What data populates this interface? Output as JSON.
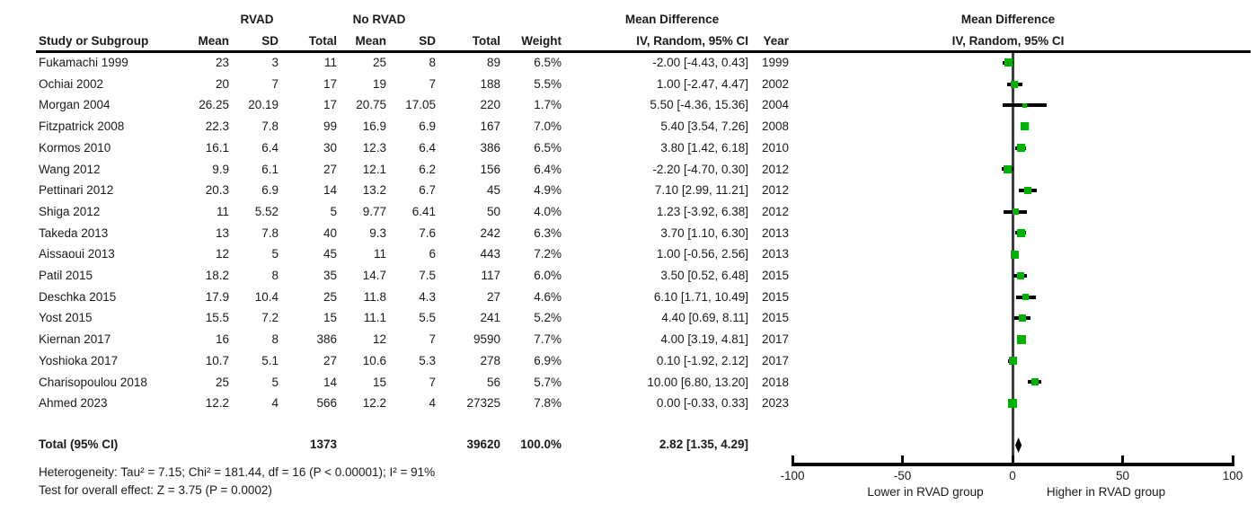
{
  "chart_data": {
    "type": "forest",
    "group1_label": "RVAD",
    "group2_label": "No RVAD",
    "effect_title": "Mean Difference",
    "effect_subtitle": "IV, Random, 95% CI",
    "plot_title": "Mean Difference",
    "plot_subtitle": "IV, Random, 95% CI",
    "columns": [
      "Study or Subgroup",
      "Mean",
      "SD",
      "Total",
      "Mean",
      "SD",
      "Total",
      "Weight",
      "IV, Random, 95% CI",
      "Year"
    ],
    "studies": [
      {
        "study": "Fukamachi 1999",
        "rvad_mean": "23",
        "rvad_sd": "3",
        "rvad_total": "11",
        "no_rvad_mean": "25",
        "no_rvad_sd": "8",
        "no_rvad_total": "89",
        "weight": "6.5%",
        "ci_label": "-2.00 [-4.43, 0.43]",
        "year": "1999",
        "md": -2.0,
        "ci_low": -4.43,
        "ci_high": 0.43,
        "weight_pct": 6.5
      },
      {
        "study": "Ochiai 2002",
        "rvad_mean": "20",
        "rvad_sd": "7",
        "rvad_total": "17",
        "no_rvad_mean": "19",
        "no_rvad_sd": "7",
        "no_rvad_total": "188",
        "weight": "5.5%",
        "ci_label": "1.00 [-2.47, 4.47]",
        "year": "2002",
        "md": 1.0,
        "ci_low": -2.47,
        "ci_high": 4.47,
        "weight_pct": 5.5
      },
      {
        "study": "Morgan 2004",
        "rvad_mean": "26.25",
        "rvad_sd": "20.19",
        "rvad_total": "17",
        "no_rvad_mean": "20.75",
        "no_rvad_sd": "17.05",
        "no_rvad_total": "220",
        "weight": "1.7%",
        "ci_label": "5.50 [-4.36, 15.36]",
        "year": "2004",
        "md": 5.5,
        "ci_low": -4.36,
        "ci_high": 15.36,
        "weight_pct": 1.7
      },
      {
        "study": "Fitzpatrick 2008",
        "rvad_mean": "22.3",
        "rvad_sd": "7.8",
        "rvad_total": "99",
        "no_rvad_mean": "16.9",
        "no_rvad_sd": "6.9",
        "no_rvad_total": "167",
        "weight": "7.0%",
        "ci_label": "5.40 [3.54, 7.26]",
        "year": "2008",
        "md": 5.4,
        "ci_low": 3.54,
        "ci_high": 7.26,
        "weight_pct": 7.0
      },
      {
        "study": "Kormos 2010",
        "rvad_mean": "16.1",
        "rvad_sd": "6.4",
        "rvad_total": "30",
        "no_rvad_mean": "12.3",
        "no_rvad_sd": "6.4",
        "no_rvad_total": "386",
        "weight": "6.5%",
        "ci_label": "3.80 [1.42, 6.18]",
        "year": "2010",
        "md": 3.8,
        "ci_low": 1.42,
        "ci_high": 6.18,
        "weight_pct": 6.5
      },
      {
        "study": "Wang 2012",
        "rvad_mean": "9.9",
        "rvad_sd": "6.1",
        "rvad_total": "27",
        "no_rvad_mean": "12.1",
        "no_rvad_sd": "6.2",
        "no_rvad_total": "156",
        "weight": "6.4%",
        "ci_label": "-2.20 [-4.70, 0.30]",
        "year": "2012",
        "md": -2.2,
        "ci_low": -4.7,
        "ci_high": 0.3,
        "weight_pct": 6.4
      },
      {
        "study": "Pettinari 2012",
        "rvad_mean": "20.3",
        "rvad_sd": "6.9",
        "rvad_total": "14",
        "no_rvad_mean": "13.2",
        "no_rvad_sd": "6.7",
        "no_rvad_total": "45",
        "weight": "4.9%",
        "ci_label": "7.10 [2.99, 11.21]",
        "year": "2012",
        "md": 7.1,
        "ci_low": 2.99,
        "ci_high": 11.21,
        "weight_pct": 4.9
      },
      {
        "study": "Shiga 2012",
        "rvad_mean": "11",
        "rvad_sd": "5.52",
        "rvad_total": "5",
        "no_rvad_mean": "9.77",
        "no_rvad_sd": "6.41",
        "no_rvad_total": "50",
        "weight": "4.0%",
        "ci_label": "1.23 [-3.92, 6.38]",
        "year": "2012",
        "md": 1.23,
        "ci_low": -3.92,
        "ci_high": 6.38,
        "weight_pct": 4.0
      },
      {
        "study": "Takeda 2013",
        "rvad_mean": "13",
        "rvad_sd": "7.8",
        "rvad_total": "40",
        "no_rvad_mean": "9.3",
        "no_rvad_sd": "7.6",
        "no_rvad_total": "242",
        "weight": "6.3%",
        "ci_label": "3.70 [1.10, 6.30]",
        "year": "2013",
        "md": 3.7,
        "ci_low": 1.1,
        "ci_high": 6.3,
        "weight_pct": 6.3
      },
      {
        "study": "Aissaoui 2013",
        "rvad_mean": "12",
        "rvad_sd": "5",
        "rvad_total": "45",
        "no_rvad_mean": "11",
        "no_rvad_sd": "6",
        "no_rvad_total": "443",
        "weight": "7.2%",
        "ci_label": "1.00 [-0.56, 2.56]",
        "year": "2013",
        "md": 1.0,
        "ci_low": -0.56,
        "ci_high": 2.56,
        "weight_pct": 7.2
      },
      {
        "study": "Patil 2015",
        "rvad_mean": "18.2",
        "rvad_sd": "8",
        "rvad_total": "35",
        "no_rvad_mean": "14.7",
        "no_rvad_sd": "7.5",
        "no_rvad_total": "117",
        "weight": "6.0%",
        "ci_label": "3.50 [0.52, 6.48]",
        "year": "2015",
        "md": 3.5,
        "ci_low": 0.52,
        "ci_high": 6.48,
        "weight_pct": 6.0
      },
      {
        "study": "Deschka 2015",
        "rvad_mean": "17.9",
        "rvad_sd": "10.4",
        "rvad_total": "25",
        "no_rvad_mean": "11.8",
        "no_rvad_sd": "4.3",
        "no_rvad_total": "27",
        "weight": "4.6%",
        "ci_label": "6.10 [1.71, 10.49]",
        "year": "2015",
        "md": 6.1,
        "ci_low": 1.71,
        "ci_high": 10.49,
        "weight_pct": 4.6
      },
      {
        "study": "Yost 2015",
        "rvad_mean": "15.5",
        "rvad_sd": "7.2",
        "rvad_total": "15",
        "no_rvad_mean": "11.1",
        "no_rvad_sd": "5.5",
        "no_rvad_total": "241",
        "weight": "5.2%",
        "ci_label": "4.40 [0.69, 8.11]",
        "year": "2015",
        "md": 4.4,
        "ci_low": 0.69,
        "ci_high": 8.11,
        "weight_pct": 5.2
      },
      {
        "study": "Kiernan 2017",
        "rvad_mean": "16",
        "rvad_sd": "8",
        "rvad_total": "386",
        "no_rvad_mean": "12",
        "no_rvad_sd": "7",
        "no_rvad_total": "9590",
        "weight": "7.7%",
        "ci_label": "4.00 [3.19, 4.81]",
        "year": "2017",
        "md": 4.0,
        "ci_low": 3.19,
        "ci_high": 4.81,
        "weight_pct": 7.7
      },
      {
        "study": "Yoshioka 2017",
        "rvad_mean": "10.7",
        "rvad_sd": "5.1",
        "rvad_total": "27",
        "no_rvad_mean": "10.6",
        "no_rvad_sd": "5.3",
        "no_rvad_total": "278",
        "weight": "6.9%",
        "ci_label": "0.10 [-1.92, 2.12]",
        "year": "2017",
        "md": 0.1,
        "ci_low": -1.92,
        "ci_high": 2.12,
        "weight_pct": 6.9
      },
      {
        "study": "Charisopoulou 2018",
        "rvad_mean": "25",
        "rvad_sd": "5",
        "rvad_total": "14",
        "no_rvad_mean": "15",
        "no_rvad_sd": "7",
        "no_rvad_total": "56",
        "weight": "5.7%",
        "ci_label": "10.00 [6.80, 13.20]",
        "year": "2018",
        "md": 10.0,
        "ci_low": 6.8,
        "ci_high": 13.2,
        "weight_pct": 5.7
      },
      {
        "study": "Ahmed 2023",
        "rvad_mean": "12.2",
        "rvad_sd": "4",
        "rvad_total": "566",
        "no_rvad_mean": "12.2",
        "no_rvad_sd": "4",
        "no_rvad_total": "27325",
        "weight": "7.8%",
        "ci_label": "0.00 [-0.33, 0.33]",
        "year": "2023",
        "md": 0.0,
        "ci_low": -0.33,
        "ci_high": 0.33,
        "weight_pct": 7.8
      }
    ],
    "total": {
      "label": "Total (95% CI)",
      "rvad_total": "1373",
      "no_rvad_total": "39620",
      "weight": "100.0%",
      "ci_label": "2.82 [1.35, 4.29]",
      "md": 2.82,
      "ci_low": 1.35,
      "ci_high": 4.29
    },
    "heterogeneity_text": "Heterogeneity: Tau² = 7.15; Chi² = 181.44, df = 16 (P < 0.00001); I² = 91%",
    "overall_effect_text": "Test for overall effect: Z = 3.75 (P = 0.0002)",
    "axis": {
      "range": [
        -100,
        100
      ],
      "ticks": [
        "-100",
        "-50",
        "0",
        "50",
        "100"
      ],
      "tick_values": [
        -100,
        -50,
        0,
        50,
        100
      ],
      "left_caption": "Lower in RVAD group",
      "right_caption": "Higher in RVAD group"
    },
    "colors": {
      "marker_green": "#00b200",
      "ci_line": "#000000",
      "zero_line": "#3e3e3e",
      "diamond": "#000000"
    }
  }
}
